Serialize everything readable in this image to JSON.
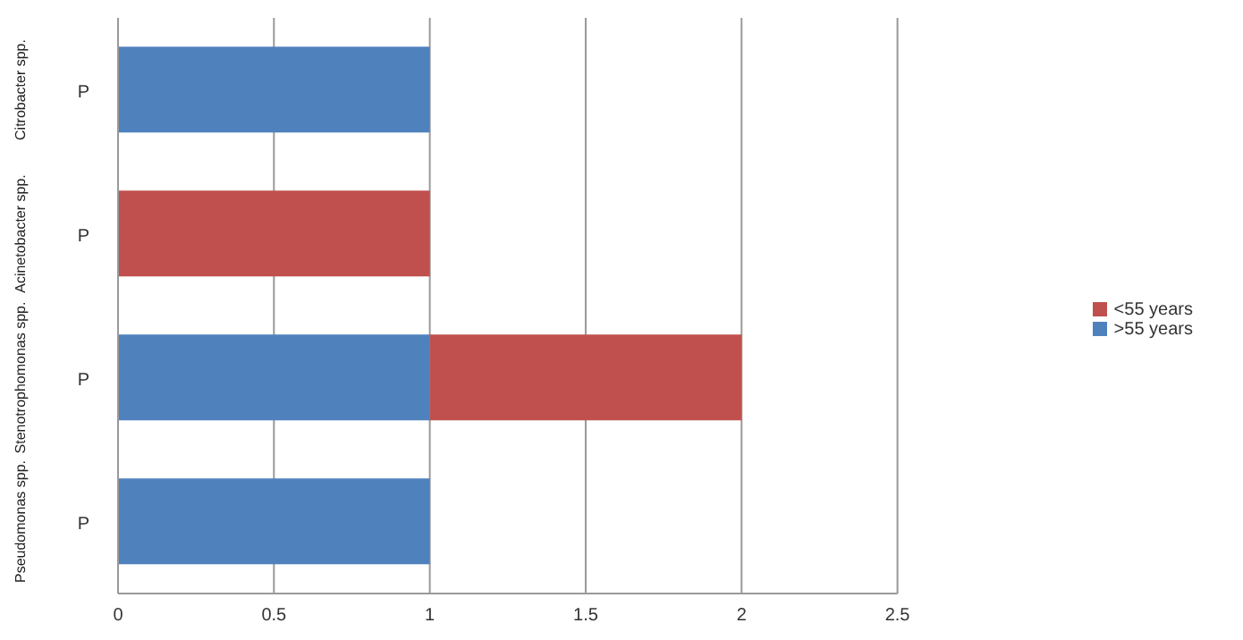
{
  "chart_data": {
    "type": "bar",
    "orientation": "horizontal",
    "stacked": true,
    "categories": [
      "P",
      "P",
      "P",
      "P"
    ],
    "annotations": [
      "Citrobacter spp.",
      "Acinetobacter spp.",
      "Stenotrophomonas spp.",
      "Pseudomonas spp."
    ],
    "series": [
      {
        "name": ">55 years",
        "color": "#4f81bd",
        "values": [
          1,
          null,
          1,
          1
        ]
      },
      {
        "name": "<55 years",
        "color": "#c0504d",
        "values": [
          null,
          1,
          1,
          null
        ]
      }
    ],
    "xlim": [
      0,
      2.5
    ],
    "xticks": [
      0,
      0.5,
      1,
      1.5,
      2,
      2.5
    ],
    "grid": "x",
    "legend": "right"
  }
}
